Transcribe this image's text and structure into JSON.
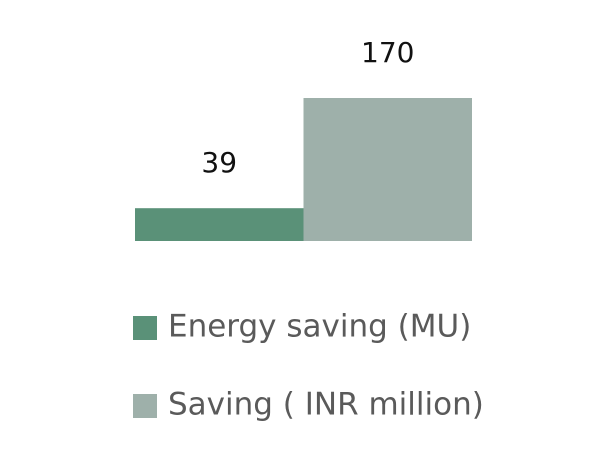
{
  "chart_data": {
    "type": "bar",
    "series": [
      {
        "name": "Energy saving (MU)",
        "color": "#5a9178",
        "values": [
          39
        ]
      },
      {
        "name": "Saving ( INR million)",
        "color": "#9eb0aa",
        "values": [
          170
        ]
      }
    ]
  }
}
